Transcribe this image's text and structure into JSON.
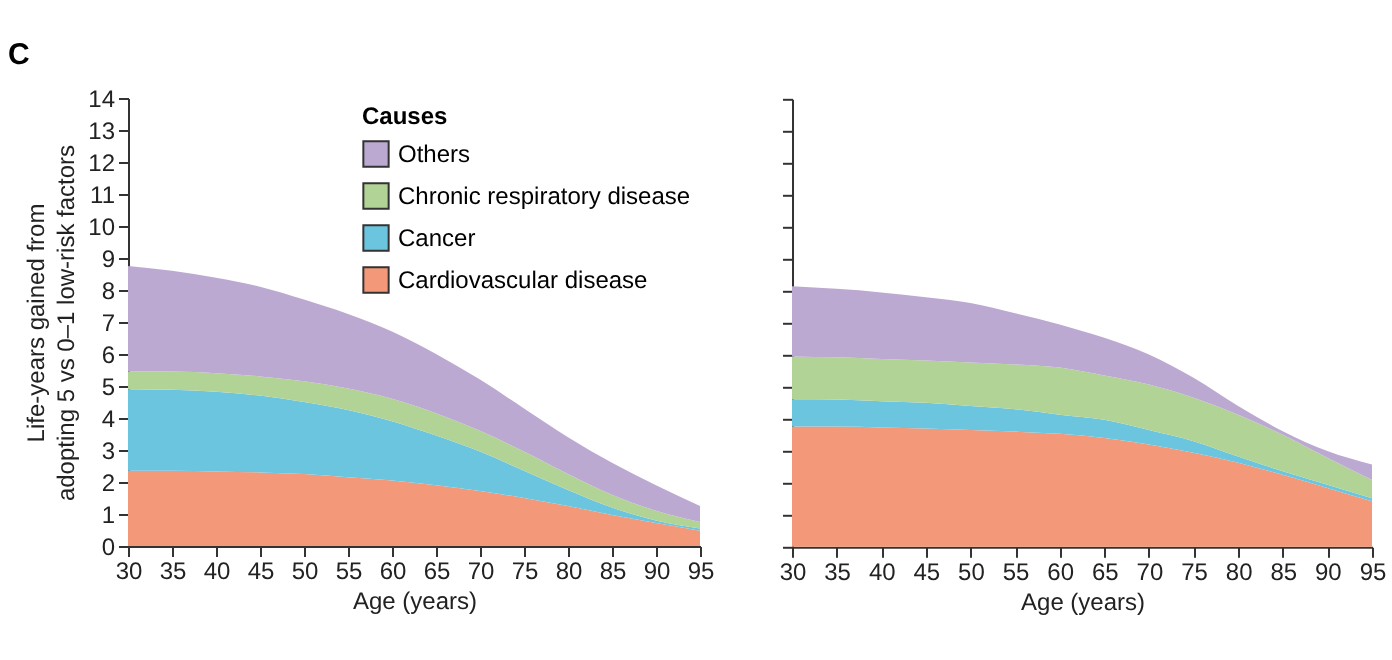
{
  "chart_data": [
    {
      "type": "area",
      "title": "C",
      "xlabel": "Age (years)",
      "ylabel": "Life-years gained from\nadopting 5 vs 0–1 low-risk factors",
      "legend_title": "Causes",
      "legend": "top right",
      "stacked": true,
      "grid": false,
      "x": [
        30,
        35,
        40,
        45,
        50,
        55,
        60,
        65,
        70,
        75,
        80,
        85,
        90,
        95
      ],
      "xlim": [
        30,
        95
      ],
      "xticks": [
        30,
        35,
        40,
        45,
        50,
        55,
        60,
        65,
        70,
        75,
        80,
        85,
        90,
        95
      ],
      "ylim": [
        0,
        14
      ],
      "yticks": [
        0,
        1,
        2,
        3,
        4,
        5,
        6,
        7,
        8,
        9,
        10,
        11,
        12,
        13,
        14
      ],
      "series": [
        {
          "name": "Cardiovascular disease",
          "color": "#f4987a",
          "values": [
            2.35,
            2.35,
            2.33,
            2.3,
            2.25,
            2.15,
            2.05,
            1.9,
            1.72,
            1.5,
            1.25,
            0.97,
            0.72,
            0.48
          ]
        },
        {
          "name": "Cancer",
          "color": "#6cc5df",
          "values": [
            2.55,
            2.53,
            2.49,
            2.4,
            2.25,
            2.1,
            1.85,
            1.55,
            1.23,
            0.85,
            0.5,
            0.23,
            0.08,
            0.07
          ]
        },
        {
          "name": "Chronic respiratory disease",
          "color": "#b2d396",
          "values": [
            0.55,
            0.57,
            0.58,
            0.6,
            0.65,
            0.67,
            0.7,
            0.7,
            0.65,
            0.6,
            0.5,
            0.4,
            0.3,
            0.2
          ]
        },
        {
          "name": "Others",
          "color": "#bca9d1",
          "values": [
            3.3,
            3.15,
            2.98,
            2.8,
            2.55,
            2.33,
            2.1,
            1.85,
            1.6,
            1.35,
            1.15,
            1.0,
            0.8,
            0.5
          ]
        }
      ]
    },
    {
      "type": "area",
      "xlabel": "Age (years)",
      "stacked": true,
      "grid": false,
      "tick_labels": "x",
      "x": [
        30,
        35,
        40,
        45,
        50,
        55,
        60,
        65,
        70,
        75,
        80,
        85,
        90,
        95
      ],
      "xlim": [
        30,
        95
      ],
      "xticks": [
        30,
        35,
        40,
        45,
        50,
        55,
        60,
        65,
        70,
        75,
        80,
        85,
        90,
        95
      ],
      "ylim": [
        0,
        14
      ],
      "yticks": [
        0,
        1,
        2,
        3,
        4,
        5,
        6,
        7,
        8,
        9,
        10,
        11,
        12,
        13,
        14
      ],
      "series": [
        {
          "color": "#f4987a",
          "values": [
            3.76,
            3.76,
            3.73,
            3.7,
            3.65,
            3.6,
            3.53,
            3.4,
            3.2,
            2.94,
            2.63,
            2.25,
            1.84,
            1.42
          ]
        },
        {
          "color": "#6cc5df",
          "values": [
            0.85,
            0.84,
            0.82,
            0.8,
            0.75,
            0.7,
            0.6,
            0.57,
            0.45,
            0.36,
            0.19,
            0.11,
            0.1,
            0.1
          ]
        },
        {
          "color": "#b2d396",
          "values": [
            1.34,
            1.32,
            1.32,
            1.32,
            1.36,
            1.4,
            1.47,
            1.38,
            1.42,
            1.36,
            1.31,
            1.14,
            0.84,
            0.57
          ]
        },
        {
          "color": "#bca9d1",
          "values": [
            2.19,
            2.14,
            2.08,
            1.98,
            1.86,
            1.6,
            1.35,
            1.18,
            0.94,
            0.62,
            0.27,
            0.11,
            0.21,
            0.48
          ]
        }
      ]
    }
  ]
}
